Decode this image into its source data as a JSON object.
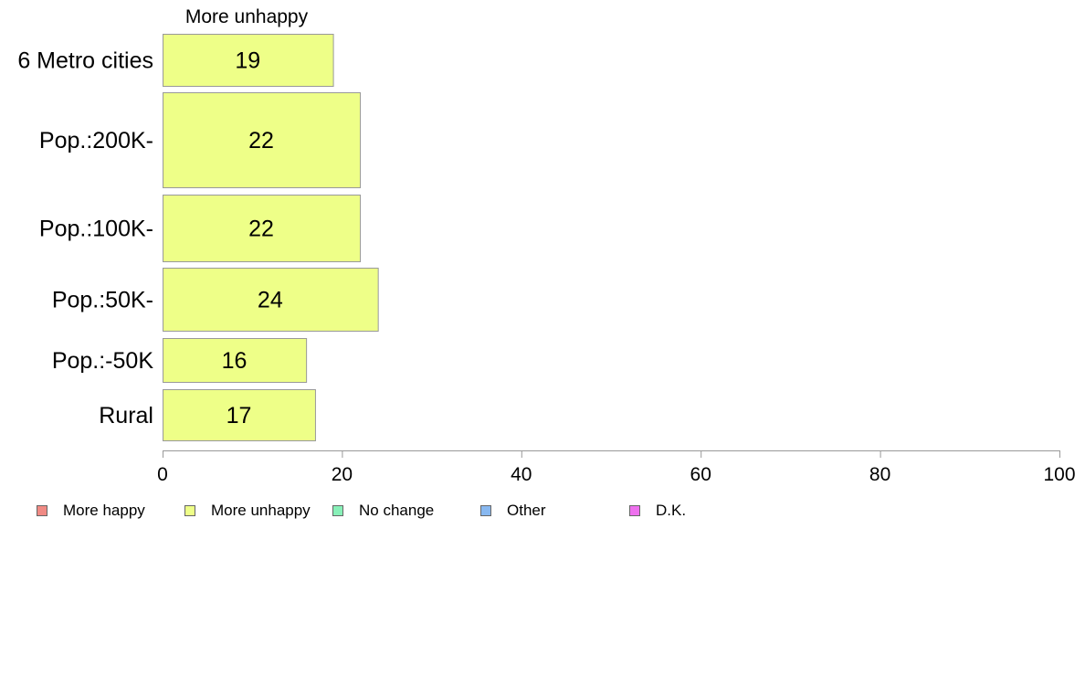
{
  "chart_data": {
    "type": "bar",
    "orientation": "horizontal",
    "title": "More unhappy",
    "categories": [
      "6 Metro cities",
      "Pop.:200K-",
      "Pop.:100K-",
      "Pop.:50K-",
      "Pop.:-50K",
      "Rural"
    ],
    "series": [
      {
        "name": "More unhappy",
        "values": [
          19,
          22,
          22,
          24,
          16,
          17
        ],
        "color": "#EEFF88"
      }
    ],
    "xlim": [
      0,
      100
    ],
    "xticks": [
      0,
      20,
      40,
      60,
      80,
      100
    ],
    "grid": false,
    "legend_position": "bottom",
    "legend": [
      {
        "label": "More happy",
        "color": "#F08A84"
      },
      {
        "label": "More unhappy",
        "color": "#EEFF88"
      },
      {
        "label": "No change",
        "color": "#88F0B8"
      },
      {
        "label": "Other",
        "color": "#88B8F0"
      },
      {
        "label": "D.K.",
        "color": "#EE70EE"
      }
    ]
  }
}
